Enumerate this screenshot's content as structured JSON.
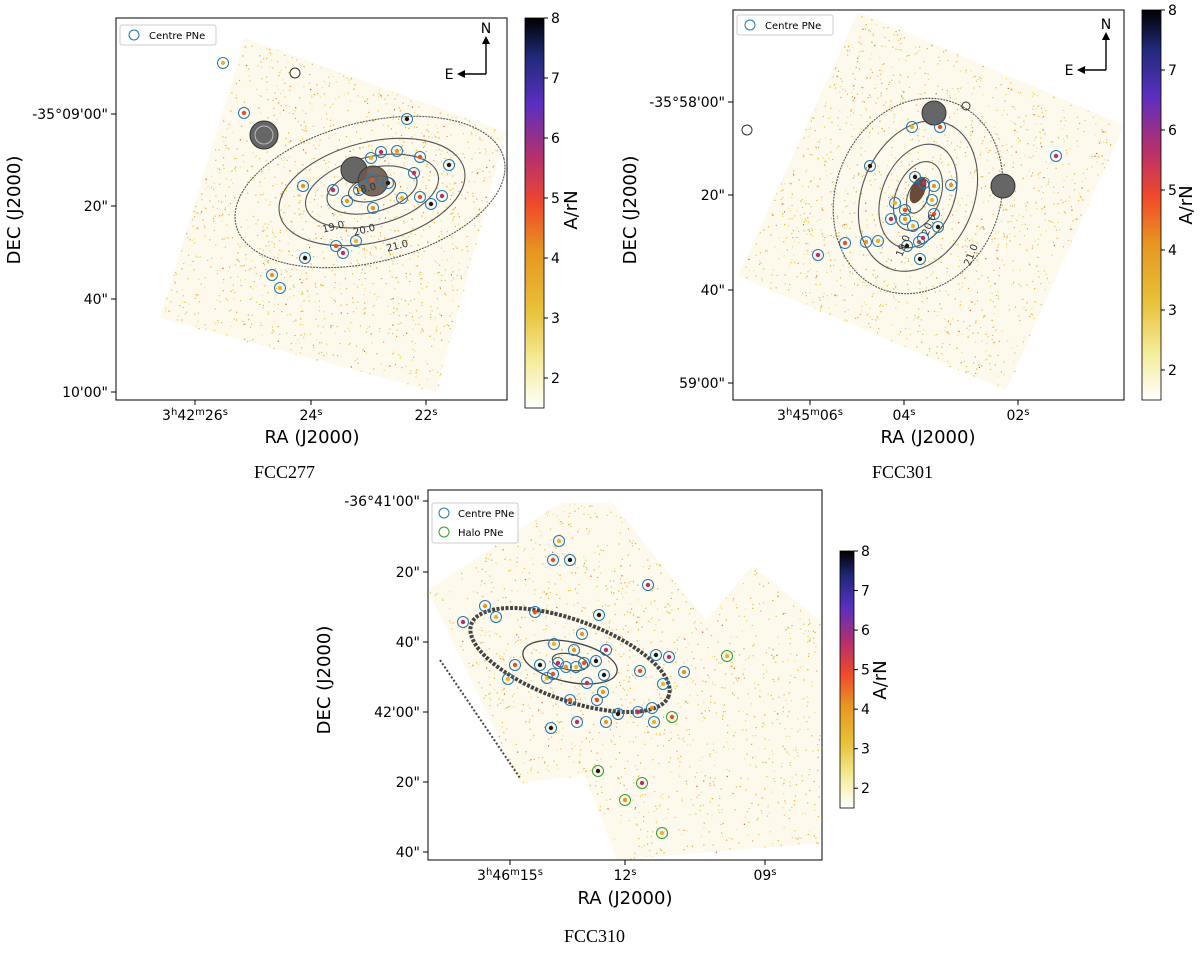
{
  "chart_data": [
    {
      "type": "scatter",
      "caption": "FCC277",
      "xlabel": "RA (J2000)",
      "ylabel": "DEC (J2000)",
      "x_ticks": [
        "3h42m26s",
        "24s",
        "22s"
      ],
      "y_ticks": [
        "-35°09'00\"",
        "20\"",
        "40\"",
        "10'00\""
      ],
      "legend": [
        {
          "name": "Centre PNe",
          "color": "#1f77b4"
        }
      ],
      "compass": {
        "north": "N",
        "east": "E"
      },
      "contour_labels": [
        "18.0",
        "19.0",
        "20.0",
        "21.0"
      ],
      "colorbar": {
        "label": "A/rN",
        "ticks": [
          2,
          3,
          4,
          5,
          6,
          7,
          8
        ],
        "range": [
          1.5,
          8
        ]
      }
    },
    {
      "type": "scatter",
      "caption": "FCC301",
      "xlabel": "RA (J2000)",
      "ylabel": "DEC (J2000)",
      "x_ticks": [
        "3h45m06s",
        "04s",
        "02s"
      ],
      "y_ticks": [
        "-35°58'00\"",
        "20\"",
        "40\"",
        "59'00\""
      ],
      "legend": [
        {
          "name": "Centre PNe",
          "color": "#1f77b4"
        }
      ],
      "compass": {
        "north": "N",
        "east": "E"
      },
      "contour_labels": [
        "19.0",
        "20.0",
        "21.0"
      ],
      "colorbar": {
        "label": "A/rN",
        "ticks": [
          2,
          3,
          4,
          5,
          6,
          7,
          8
        ],
        "range": [
          1.5,
          8
        ]
      }
    },
    {
      "type": "scatter",
      "caption": "FCC310",
      "xlabel": "RA (J2000)",
      "ylabel": "DEC (J2000)",
      "x_ticks": [
        "3h46m15s",
        "12s",
        "09s"
      ],
      "y_ticks": [
        "-36°41'00\"",
        "20\"",
        "40\"",
        "42'00\"",
        "20\"",
        "40\""
      ],
      "legend": [
        {
          "name": "Centre PNe",
          "color": "#1f77b4"
        },
        {
          "name": "Halo PNe",
          "color": "#2ca02c"
        }
      ],
      "colorbar": {
        "label": "A/rN",
        "ticks": [
          2,
          3,
          4,
          5,
          6,
          7,
          8
        ],
        "range": [
          1.5,
          8
        ]
      }
    }
  ]
}
